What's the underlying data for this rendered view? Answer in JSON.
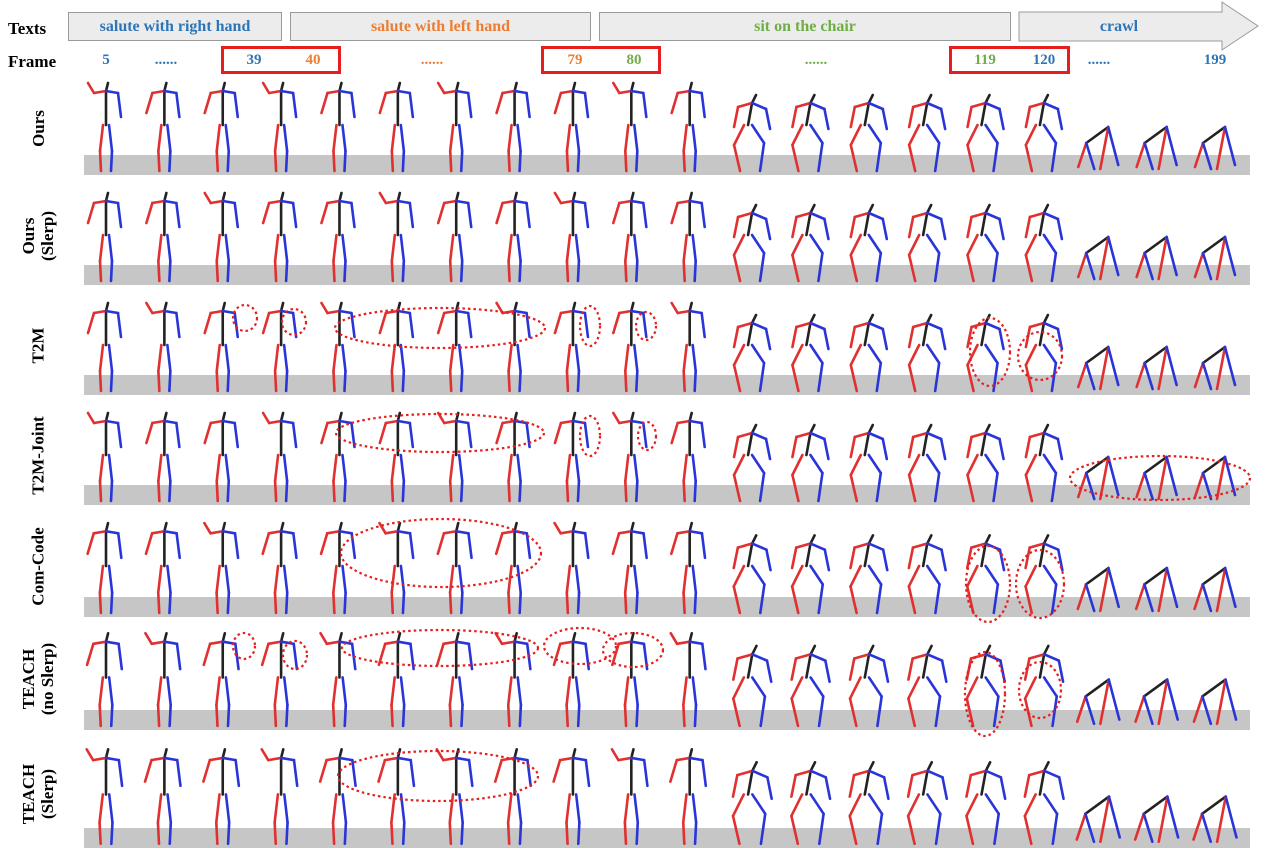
{
  "header": {
    "texts_label": "Texts",
    "frame_label": "Frame"
  },
  "segments": [
    {
      "label": "salute with right hand",
      "color": "#2e75b6"
    },
    {
      "label": "salute with left hand",
      "color": "#ed7d31"
    },
    {
      "label": "sit on the chair",
      "color": "#70ad47"
    },
    {
      "label": "crawl",
      "color": "#2e75b6"
    }
  ],
  "frames": [
    {
      "label": "5",
      "color": "#2e75b6"
    },
    {
      "label": "......",
      "color": "#2e75b6"
    },
    {
      "label": "39",
      "color": "#2e75b6"
    },
    {
      "label": "40",
      "color": "#ed7d31"
    },
    {
      "label": "......",
      "color": "#ed7d31"
    },
    {
      "label": "79",
      "color": "#ed7d31"
    },
    {
      "label": "80",
      "color": "#70ad47"
    },
    {
      "label": "......",
      "color": "#70ad47"
    },
    {
      "label": "119",
      "color": "#70ad47"
    },
    {
      "label": "120",
      "color": "#2e75b6"
    },
    {
      "label": "......",
      "color": "#2e75b6"
    },
    {
      "label": "199",
      "color": "#2e75b6"
    }
  ],
  "rows": [
    {
      "label": "Ours"
    },
    {
      "label": "Ours\n(Slerp)"
    },
    {
      "label": "T2M"
    },
    {
      "label": "T2M-Joint"
    },
    {
      "label": "Com-Code"
    },
    {
      "label": "TEACH\n(no Slerp)"
    },
    {
      "label": "TEACH\n(Slerp)"
    }
  ],
  "colors": {
    "left_limb": "#e03030",
    "right_limb": "#2a35d8",
    "spine": "#222222",
    "floor": "#c6c6c6",
    "highlight": "#e61e1e"
  }
}
